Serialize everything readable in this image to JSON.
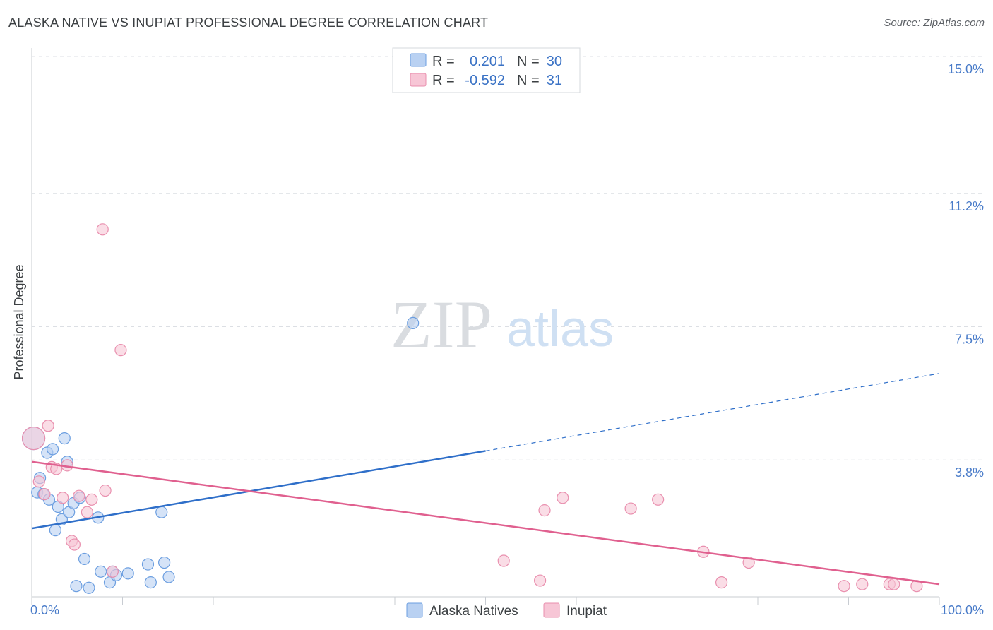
{
  "header": {
    "title": "ALASKA NATIVE VS INUPIAT PROFESSIONAL DEGREE CORRELATION CHART",
    "source": "Source: ZipAtlas.com"
  },
  "watermark": {
    "zip": "ZIP",
    "atlas": "atlas"
  },
  "colors": {
    "blue_fill": "#b9d1f2",
    "blue_stroke": "#6b9ee0",
    "blue_line": "#2f6fc9",
    "pink_fill": "#f7c6d6",
    "pink_stroke": "#e98fae",
    "pink_line": "#e0608f"
  },
  "legend": {
    "rows": [
      {
        "r_label": "R =",
        "r_value": "0.201",
        "n_label": "N =",
        "n_value": "30"
      },
      {
        "r_label": "R =",
        "r_value": "-0.592",
        "n_label": "N =",
        "n_value": "31"
      }
    ]
  },
  "chart_data": {
    "type": "scatter",
    "title": "ALASKA NATIVE VS INUPIAT PROFESSIONAL DEGREE CORRELATION CHART",
    "xlabel": "",
    "ylabel": "Professional Degree",
    "xlim": [
      0,
      100
    ],
    "ylim": [
      0,
      15
    ],
    "x_tick_labels": [
      "0.0%",
      "100.0%"
    ],
    "y_ticks": [
      {
        "value": 3.8,
        "label": "3.8%"
      },
      {
        "value": 7.5,
        "label": "7.5%"
      },
      {
        "value": 11.2,
        "label": "11.2%"
      },
      {
        "value": 15.0,
        "label": "15.0%"
      }
    ],
    "series": [
      {
        "name": "Alaska Natives",
        "color": "blue",
        "trend": {
          "x0": 0,
          "y0": 1.9,
          "x1": 50,
          "y1": 4.05,
          "x_dash_end": 100,
          "y_dash_end": 6.2
        },
        "points": [
          [
            0.2,
            4.4
          ],
          [
            0.6,
            2.9
          ],
          [
            0.9,
            3.3
          ],
          [
            1.3,
            2.85
          ],
          [
            1.7,
            4.0
          ],
          [
            1.9,
            2.7
          ],
          [
            2.3,
            4.1
          ],
          [
            2.6,
            1.85
          ],
          [
            2.9,
            2.5
          ],
          [
            3.3,
            2.15
          ],
          [
            3.6,
            4.4
          ],
          [
            3.9,
            3.75
          ],
          [
            4.1,
            2.35
          ],
          [
            4.6,
            2.6
          ],
          [
            4.9,
            0.3
          ],
          [
            5.3,
            2.75
          ],
          [
            5.8,
            1.05
          ],
          [
            6.3,
            0.25
          ],
          [
            7.3,
            2.2
          ],
          [
            7.6,
            0.7
          ],
          [
            8.6,
            0.4
          ],
          [
            8.9,
            0.7
          ],
          [
            9.3,
            0.6
          ],
          [
            10.6,
            0.65
          ],
          [
            12.8,
            0.9
          ],
          [
            13.1,
            0.4
          ],
          [
            14.3,
            2.35
          ],
          [
            14.6,
            0.95
          ],
          [
            15.1,
            0.55
          ],
          [
            42.0,
            7.6
          ]
        ]
      },
      {
        "name": "Inupiat",
        "color": "pink",
        "trend": {
          "x0": 0,
          "y0": 3.75,
          "x1": 100,
          "y1": 0.35
        },
        "points": [
          [
            0.2,
            4.4
          ],
          [
            0.8,
            3.2
          ],
          [
            1.4,
            2.85
          ],
          [
            1.8,
            4.75
          ],
          [
            2.2,
            3.6
          ],
          [
            2.7,
            3.55
          ],
          [
            3.4,
            2.75
          ],
          [
            3.9,
            3.65
          ],
          [
            4.4,
            1.55
          ],
          [
            4.7,
            1.45
          ],
          [
            5.2,
            2.8
          ],
          [
            6.1,
            2.35
          ],
          [
            6.6,
            2.7
          ],
          [
            7.8,
            10.2
          ],
          [
            8.1,
            2.95
          ],
          [
            8.9,
            0.7
          ],
          [
            9.8,
            6.85
          ],
          [
            52.0,
            1.0
          ],
          [
            56.0,
            0.45
          ],
          [
            56.5,
            2.4
          ],
          [
            58.5,
            2.75
          ],
          [
            66.0,
            2.45
          ],
          [
            69.0,
            2.7
          ],
          [
            74.0,
            1.25
          ],
          [
            76.0,
            0.4
          ],
          [
            79.0,
            0.95
          ],
          [
            89.5,
            0.3
          ],
          [
            91.5,
            0.35
          ],
          [
            94.5,
            0.35
          ],
          [
            95.0,
            0.35
          ],
          [
            97.5,
            0.3
          ]
        ]
      }
    ]
  }
}
